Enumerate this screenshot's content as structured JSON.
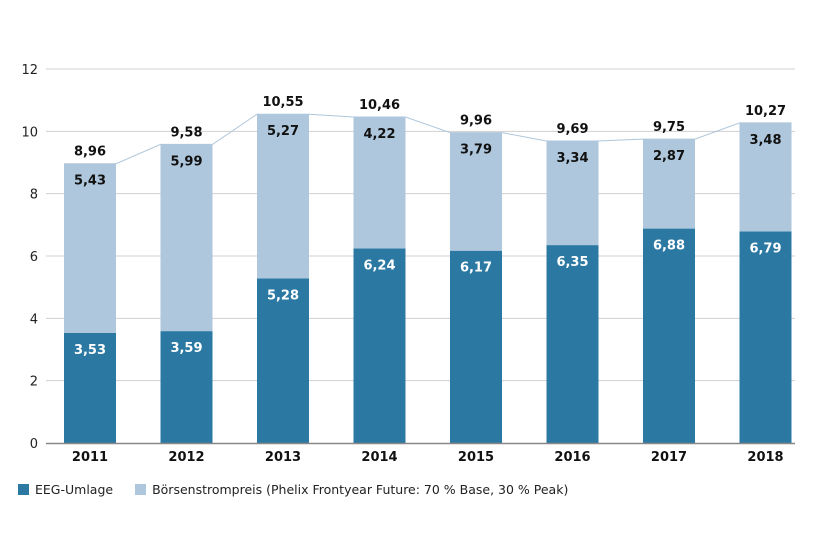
{
  "chart_data": {
    "type": "bar",
    "stacked": true,
    "title": "",
    "xlabel": "",
    "ylabel": "",
    "ylim": [
      0,
      12
    ],
    "yticks": [
      0,
      2,
      4,
      6,
      8,
      10,
      12
    ],
    "grid": true,
    "legend_position": "bottom-left",
    "categories": [
      "2011",
      "2012",
      "2013",
      "2014",
      "2015",
      "2016",
      "2017",
      "2018"
    ],
    "series": [
      {
        "name": "EEG-Umlage",
        "color": "#2b79a3",
        "label_color": "#ffffff",
        "values": [
          3.53,
          3.59,
          5.28,
          6.24,
          6.17,
          6.35,
          6.88,
          6.79
        ],
        "labels": [
          "3,53",
          "3,59",
          "5,28",
          "6,24",
          "6,17",
          "6,35",
          "6,88",
          "6,79"
        ]
      },
      {
        "name": "Börsenstrompreis (Phelix Frontyear Future: 70 % Base, 30 % Peak)",
        "color": "#aec7dc",
        "label_color": "#111111",
        "values": [
          5.43,
          5.99,
          5.27,
          4.22,
          3.79,
          3.34,
          2.87,
          3.48
        ],
        "labels": [
          "5,43",
          "5,99",
          "5,27",
          "4,22",
          "3,79",
          "3,34",
          "2,87",
          "3,48"
        ]
      }
    ],
    "totals": [
      8.96,
      9.58,
      10.55,
      10.46,
      9.96,
      9.69,
      9.75,
      10.27
    ],
    "total_labels": [
      "8,96",
      "9,58",
      "10,55",
      "10,46",
      "9,96",
      "9,69",
      "9,75",
      "10,27"
    ],
    "connector_line": true
  },
  "legend": {
    "items": [
      {
        "label": "EEG-Umlage",
        "color": "#2b79a3"
      },
      {
        "label": "Börsenstrompreis (Phelix Frontyear Future: 70 % Base, 30 % Peak)",
        "color": "#aec7dc"
      }
    ]
  }
}
